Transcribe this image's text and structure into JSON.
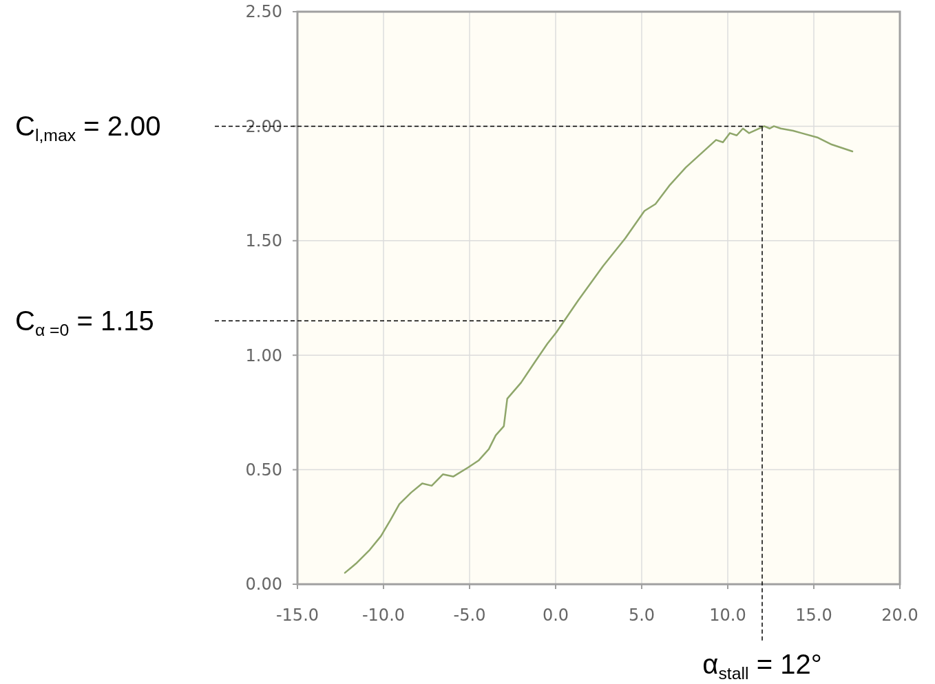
{
  "chart_data": {
    "type": "line",
    "xlim": [
      -15,
      20
    ],
    "ylim": [
      0,
      2.5
    ],
    "xticks": [
      {
        "value": -15,
        "label": "-15.0"
      },
      {
        "value": -10,
        "label": "-10.0"
      },
      {
        "value": -5,
        "label": "-5.0"
      },
      {
        "value": 0,
        "label": "0.0"
      },
      {
        "value": 5,
        "label": "5.0"
      },
      {
        "value": 10,
        "label": "10.0"
      },
      {
        "value": 15,
        "label": "15.0"
      },
      {
        "value": 20,
        "label": "20.0"
      }
    ],
    "yticks": [
      {
        "value": 0,
        "label": "0.00"
      },
      {
        "value": 0.5,
        "label": "0.50"
      },
      {
        "value": 1,
        "label": "1.00"
      },
      {
        "value": 1.5,
        "label": "1.50"
      },
      {
        "value": 2,
        "label": "2.00"
      },
      {
        "value": 2.5,
        "label": "2.50"
      }
    ],
    "grid": true,
    "marker": "none",
    "line_style": "solid",
    "series": [
      {
        "color": "#8fa66a",
        "x": [
          -12.24,
          -11.6,
          -10.8,
          -10.15,
          -9.6,
          -9.08,
          -8.4,
          -7.75,
          -7.2,
          -6.55,
          -5.95,
          -5.08,
          -4.48,
          -3.88,
          -3.48,
          -3.01,
          -2.81,
          -2.01,
          -1.21,
          -0.48,
          0.04,
          1.32,
          2.76,
          4.04,
          5.16,
          5.8,
          6.6,
          7.56,
          8.44,
          9.32,
          9.72,
          10.12,
          10.52,
          10.88,
          11.24,
          12.12,
          12.44,
          12.68,
          13.08,
          13.8,
          14.28,
          15.24,
          16.04,
          17.24
        ],
        "values": [
          0.05,
          0.09,
          0.15,
          0.21,
          0.28,
          0.35,
          0.4,
          0.44,
          0.43,
          0.48,
          0.47,
          0.51,
          0.54,
          0.59,
          0.65,
          0.69,
          0.81,
          0.88,
          0.97,
          1.05,
          1.1,
          1.24,
          1.39,
          1.51,
          1.63,
          1.66,
          1.74,
          1.82,
          1.88,
          1.94,
          1.93,
          1.97,
          1.96,
          1.99,
          1.97,
          2.0,
          1.99,
          2.0,
          1.99,
          1.98,
          1.97,
          1.95,
          1.92,
          1.89
        ]
      }
    ],
    "ref_lines": [
      {
        "axis": "y",
        "value": 2.0,
        "label": "C$_{l,max}$ = 2.00",
        "color": "#000000",
        "line_style": "dashed"
      },
      {
        "axis": "y",
        "value": 1.15,
        "label": "C$_{α =0}$ = 1.15",
        "color": "#000000",
        "line_style": "dashed"
      },
      {
        "axis": "x",
        "value": 12,
        "label": "α$_{stall}$ = 12°",
        "color": "#000000",
        "line_style": "dashed"
      }
    ]
  }
}
